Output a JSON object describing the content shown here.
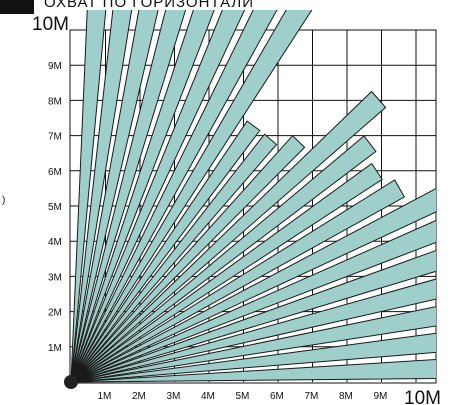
{
  "header": {
    "title": "ОХВАТ  ПО  ГОРИЗОНТАЛИ"
  },
  "left_note": ")",
  "axis": {
    "max_label_y": "10М",
    "max_label_x": "10М",
    "y_ticks": [
      "1М",
      "2М",
      "3М",
      "4М",
      "5М",
      "6М",
      "7М",
      "8М",
      "9М"
    ],
    "x_ticks": [
      "1М",
      "2М",
      "3М",
      "4М",
      "5М",
      "6М",
      "7М",
      "8М",
      "9М"
    ]
  },
  "colors": {
    "beam_fill": "#9fcfcb",
    "beam_stroke": "#1a1a1a",
    "grid": "#111111",
    "header_block": "#111111"
  },
  "beams": {
    "angles_deg": [
      2,
      6,
      10,
      14,
      18,
      22,
      26,
      30,
      34,
      38,
      42,
      46,
      50,
      54,
      58,
      62,
      66,
      70,
      74,
      78,
      82,
      86
    ],
    "lengths_m": [
      14,
      14,
      14,
      14,
      14,
      14,
      12,
      11,
      10.7,
      11,
      12,
      9.5,
      9,
      9,
      14,
      14,
      14,
      14,
      14,
      14,
      14,
      14
    ],
    "half_width_deg": 1.45
  }
}
